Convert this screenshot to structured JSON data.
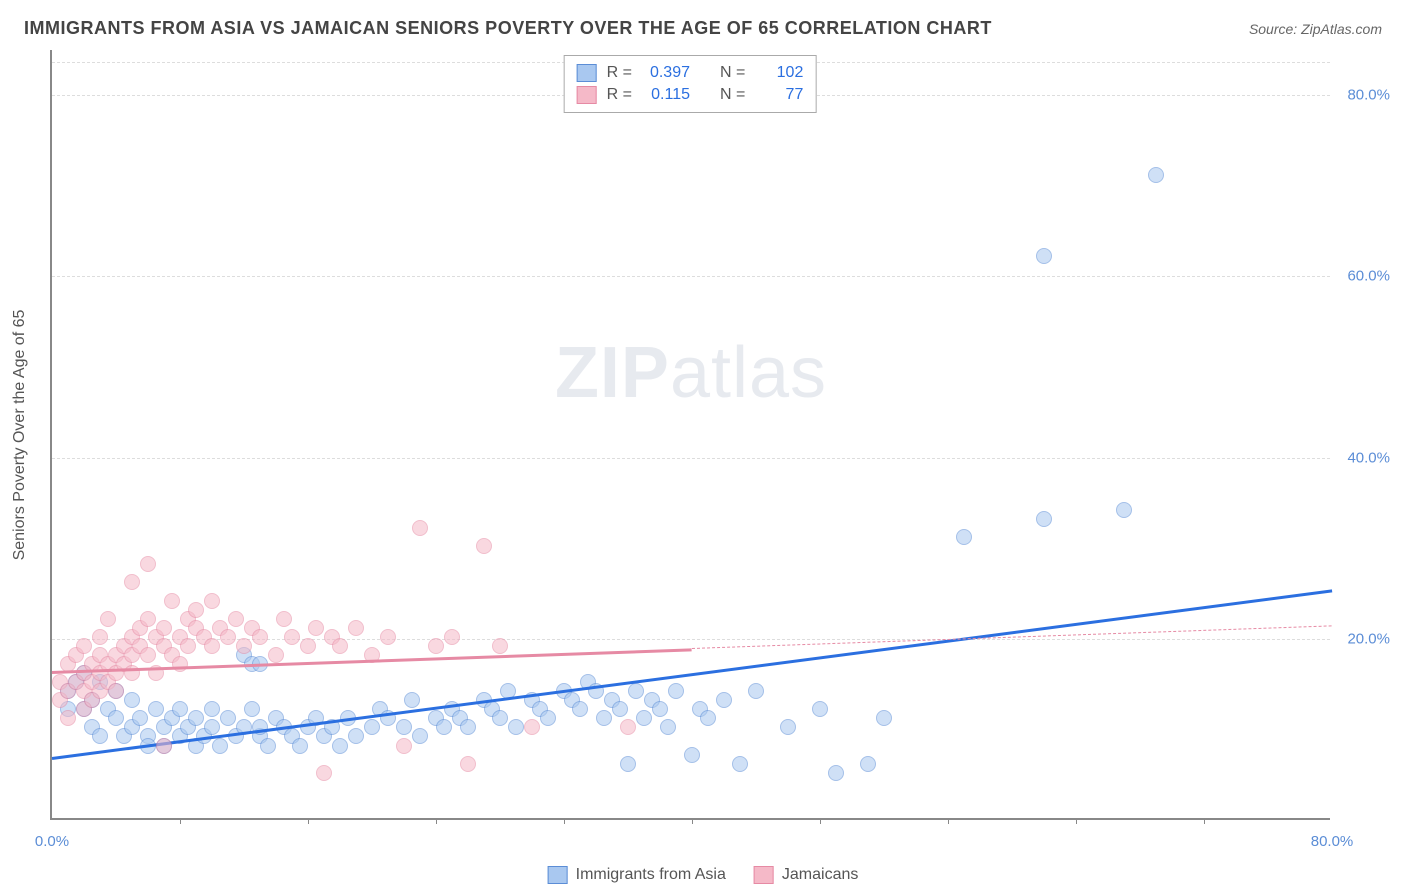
{
  "header": {
    "title": "IMMIGRANTS FROM ASIA VS JAMAICAN SENIORS POVERTY OVER THE AGE OF 65 CORRELATION CHART",
    "source_prefix": "Source: ",
    "source": "ZipAtlas.com"
  },
  "chart": {
    "type": "scatter",
    "background_color": "#ffffff",
    "grid_color": "#dddddd",
    "axis_color": "#888888",
    "ylabel": "Seniors Poverty Over the Age of 65",
    "label_fontsize": 16,
    "label_color": "#555555",
    "axis_tick_color": "#5b8dd6",
    "xlim": [
      0,
      80
    ],
    "ylim": [
      0,
      85
    ],
    "x_ticks": [
      0,
      80
    ],
    "x_tick_labels": [
      "0.0%",
      "80.0%"
    ],
    "x_minor_ticks": [
      8,
      16,
      24,
      32,
      40,
      48,
      56,
      64,
      72
    ],
    "y_ticks": [
      20,
      40,
      60,
      80
    ],
    "y_tick_labels": [
      "20.0%",
      "40.0%",
      "60.0%",
      "80.0%"
    ],
    "marker_size": 16,
    "marker_opacity": 0.55,
    "watermark": "ZIPatlas",
    "series": [
      {
        "name": "Immigrants from Asia",
        "fill_color": "#a9c8f0",
        "stroke_color": "#5b8dd6",
        "line_color": "#2b6fe0",
        "r": 0.397,
        "n": 102,
        "regression": {
          "x1": 0,
          "y1": 7,
          "x2": 80,
          "y2": 25.5,
          "solid_until_x": 80
        },
        "points": [
          [
            1,
            14
          ],
          [
            1,
            12
          ],
          [
            1.5,
            15
          ],
          [
            2,
            12
          ],
          [
            2,
            16
          ],
          [
            2.5,
            10
          ],
          [
            2.5,
            13
          ],
          [
            3,
            15
          ],
          [
            3,
            9
          ],
          [
            3.5,
            12
          ],
          [
            4,
            11
          ],
          [
            4,
            14
          ],
          [
            4.5,
            9
          ],
          [
            5,
            10
          ],
          [
            5,
            13
          ],
          [
            5.5,
            11
          ],
          [
            6,
            9
          ],
          [
            6,
            8
          ],
          [
            6.5,
            12
          ],
          [
            7,
            10
          ],
          [
            7,
            8
          ],
          [
            7.5,
            11
          ],
          [
            8,
            9
          ],
          [
            8,
            12
          ],
          [
            8.5,
            10
          ],
          [
            9,
            8
          ],
          [
            9,
            11
          ],
          [
            9.5,
            9
          ],
          [
            10,
            10
          ],
          [
            10,
            12
          ],
          [
            10.5,
            8
          ],
          [
            11,
            11
          ],
          [
            11.5,
            9
          ],
          [
            12,
            18
          ],
          [
            12,
            10
          ],
          [
            12.5,
            12
          ],
          [
            13,
            9
          ],
          [
            13,
            10
          ],
          [
            13.5,
            8
          ],
          [
            14,
            11
          ],
          [
            14.5,
            10
          ],
          [
            15,
            9
          ],
          [
            15.5,
            8
          ],
          [
            16,
            10
          ],
          [
            16.5,
            11
          ],
          [
            17,
            9
          ],
          [
            17.5,
            10
          ],
          [
            18,
            8
          ],
          [
            18.5,
            11
          ],
          [
            19,
            9
          ],
          [
            20,
            10
          ],
          [
            20.5,
            12
          ],
          [
            21,
            11
          ],
          [
            22,
            10
          ],
          [
            22.5,
            13
          ],
          [
            23,
            9
          ],
          [
            24,
            11
          ],
          [
            24.5,
            10
          ],
          [
            25,
            12
          ],
          [
            25.5,
            11
          ],
          [
            26,
            10
          ],
          [
            27,
            13
          ],
          [
            27.5,
            12
          ],
          [
            28,
            11
          ],
          [
            28.5,
            14
          ],
          [
            29,
            10
          ],
          [
            30,
            13
          ],
          [
            30.5,
            12
          ],
          [
            31,
            11
          ],
          [
            32,
            14
          ],
          [
            32.5,
            13
          ],
          [
            33,
            12
          ],
          [
            33.5,
            15
          ],
          [
            34,
            14
          ],
          [
            34.5,
            11
          ],
          [
            35,
            13
          ],
          [
            35.5,
            12
          ],
          [
            36,
            6
          ],
          [
            36.5,
            14
          ],
          [
            37,
            11
          ],
          [
            37.5,
            13
          ],
          [
            38,
            12
          ],
          [
            38.5,
            10
          ],
          [
            39,
            14
          ],
          [
            40,
            7
          ],
          [
            40.5,
            12
          ],
          [
            41,
            11
          ],
          [
            42,
            13
          ],
          [
            43,
            6
          ],
          [
            44,
            14
          ],
          [
            46,
            10
          ],
          [
            48,
            12
          ],
          [
            49,
            5
          ],
          [
            51,
            6
          ],
          [
            52,
            11
          ],
          [
            57,
            31
          ],
          [
            62,
            33
          ],
          [
            62,
            62
          ],
          [
            67,
            34
          ],
          [
            69,
            71
          ],
          [
            12.5,
            17
          ],
          [
            13,
            17
          ]
        ]
      },
      {
        "name": "Jamaicans",
        "fill_color": "#f5b9c8",
        "stroke_color": "#e68aa4",
        "line_color": "#e68aa4",
        "r": 0.115,
        "n": 77,
        "regression": {
          "x1": 0,
          "y1": 16.5,
          "x2": 80,
          "y2": 21.5,
          "solid_until_x": 40
        },
        "points": [
          [
            0.5,
            13
          ],
          [
            0.5,
            15
          ],
          [
            1,
            14
          ],
          [
            1,
            17
          ],
          [
            1,
            11
          ],
          [
            1.5,
            15
          ],
          [
            1.5,
            18
          ],
          [
            2,
            14
          ],
          [
            2,
            16
          ],
          [
            2,
            12
          ],
          [
            2,
            19
          ],
          [
            2.5,
            17
          ],
          [
            2.5,
            15
          ],
          [
            2.5,
            13
          ],
          [
            3,
            18
          ],
          [
            3,
            16
          ],
          [
            3,
            14
          ],
          [
            3,
            20
          ],
          [
            3.5,
            17
          ],
          [
            3.5,
            15
          ],
          [
            3.5,
            22
          ],
          [
            4,
            18
          ],
          [
            4,
            16
          ],
          [
            4,
            14
          ],
          [
            4.5,
            19
          ],
          [
            4.5,
            17
          ],
          [
            5,
            20
          ],
          [
            5,
            18
          ],
          [
            5,
            16
          ],
          [
            5,
            26
          ],
          [
            5.5,
            21
          ],
          [
            5.5,
            19
          ],
          [
            6,
            22
          ],
          [
            6,
            18
          ],
          [
            6,
            28
          ],
          [
            6.5,
            20
          ],
          [
            6.5,
            16
          ],
          [
            7,
            8
          ],
          [
            7,
            21
          ],
          [
            7,
            19
          ],
          [
            7.5,
            18
          ],
          [
            7.5,
            24
          ],
          [
            8,
            20
          ],
          [
            8,
            17
          ],
          [
            8.5,
            22
          ],
          [
            8.5,
            19
          ],
          [
            9,
            21
          ],
          [
            9,
            23
          ],
          [
            9.5,
            20
          ],
          [
            10,
            19
          ],
          [
            10,
            24
          ],
          [
            10.5,
            21
          ],
          [
            11,
            20
          ],
          [
            11.5,
            22
          ],
          [
            12,
            19
          ],
          [
            12.5,
            21
          ],
          [
            13,
            20
          ],
          [
            14,
            18
          ],
          [
            14.5,
            22
          ],
          [
            15,
            20
          ],
          [
            16,
            19
          ],
          [
            16.5,
            21
          ],
          [
            17,
            5
          ],
          [
            17.5,
            20
          ],
          [
            18,
            19
          ],
          [
            19,
            21
          ],
          [
            20,
            18
          ],
          [
            21,
            20
          ],
          [
            22,
            8
          ],
          [
            23,
            32
          ],
          [
            24,
            19
          ],
          [
            25,
            20
          ],
          [
            26,
            6
          ],
          [
            27,
            30
          ],
          [
            28,
            19
          ],
          [
            30,
            10
          ],
          [
            36,
            10
          ]
        ]
      }
    ]
  },
  "legend": {
    "stats_label_r": "R =",
    "stats_label_n": "N ="
  }
}
